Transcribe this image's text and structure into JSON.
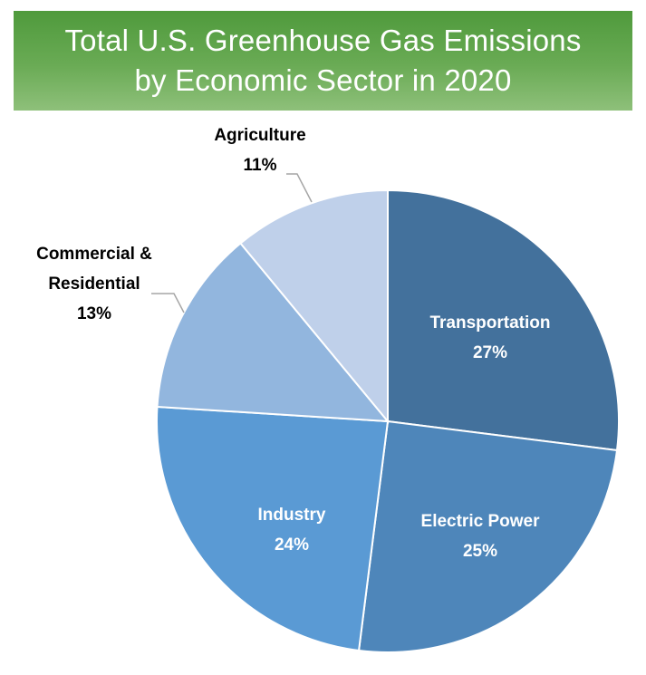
{
  "title": {
    "line1": "Total U.S. Greenhouse Gas Emissions",
    "line2": "by Economic Sector in 2020"
  },
  "chart_data": {
    "type": "pie",
    "title": "Total U.S. Greenhouse Gas Emissions by Economic Sector in 2020",
    "slices": [
      {
        "label": "Transportation",
        "value": 27,
        "display": "27%",
        "color": "#43719c",
        "label_color": "#ffffff"
      },
      {
        "label": "Electric Power",
        "value": 25,
        "display": "25%",
        "color": "#4e86ba",
        "label_color": "#ffffff"
      },
      {
        "label": "Industry",
        "value": 24,
        "display": "24%",
        "color": "#5a9ad4",
        "label_color": "#ffffff"
      },
      {
        "label": "Commercial & Residential",
        "label_lines": [
          "Commercial &",
          "Residential"
        ],
        "value": 13,
        "display": "13%",
        "color": "#92b6de",
        "label_color": "#000000"
      },
      {
        "label": "Agriculture",
        "value": 11,
        "display": "11%",
        "color": "#bfd0ea",
        "label_color": "#000000"
      }
    ]
  }
}
